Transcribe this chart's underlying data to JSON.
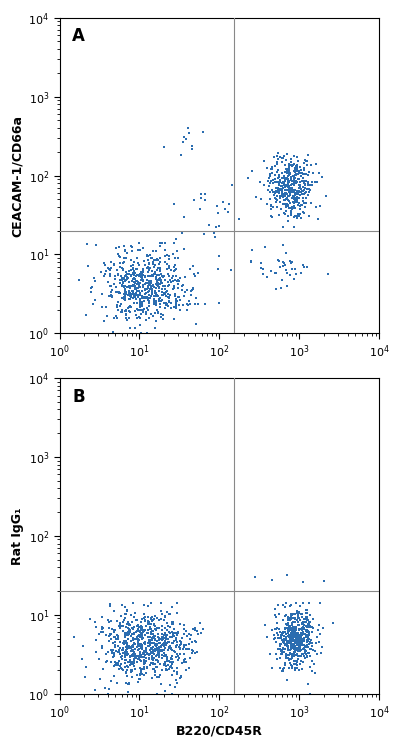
{
  "panel_A": {
    "label": "A",
    "ylabel": "CEACAM-1/CD66a",
    "vline_x": 150,
    "hline_y": 20
  },
  "panel_B": {
    "label": "B",
    "ylabel": "Rat IgG₁",
    "vline_x": 150,
    "hline_y": 20
  },
  "xlabel": "B220/CD45R",
  "dot_color": "#2b6db0",
  "dot_size": 3.5,
  "line_color": "#888888",
  "line_width": 0.8,
  "bg_color": "#ffffff",
  "xlim": [
    1,
    10000
  ],
  "ylim": [
    1,
    10000
  ],
  "tick_label_size": 8,
  "label_fontsize": 9,
  "panel_label_fontsize": 12
}
